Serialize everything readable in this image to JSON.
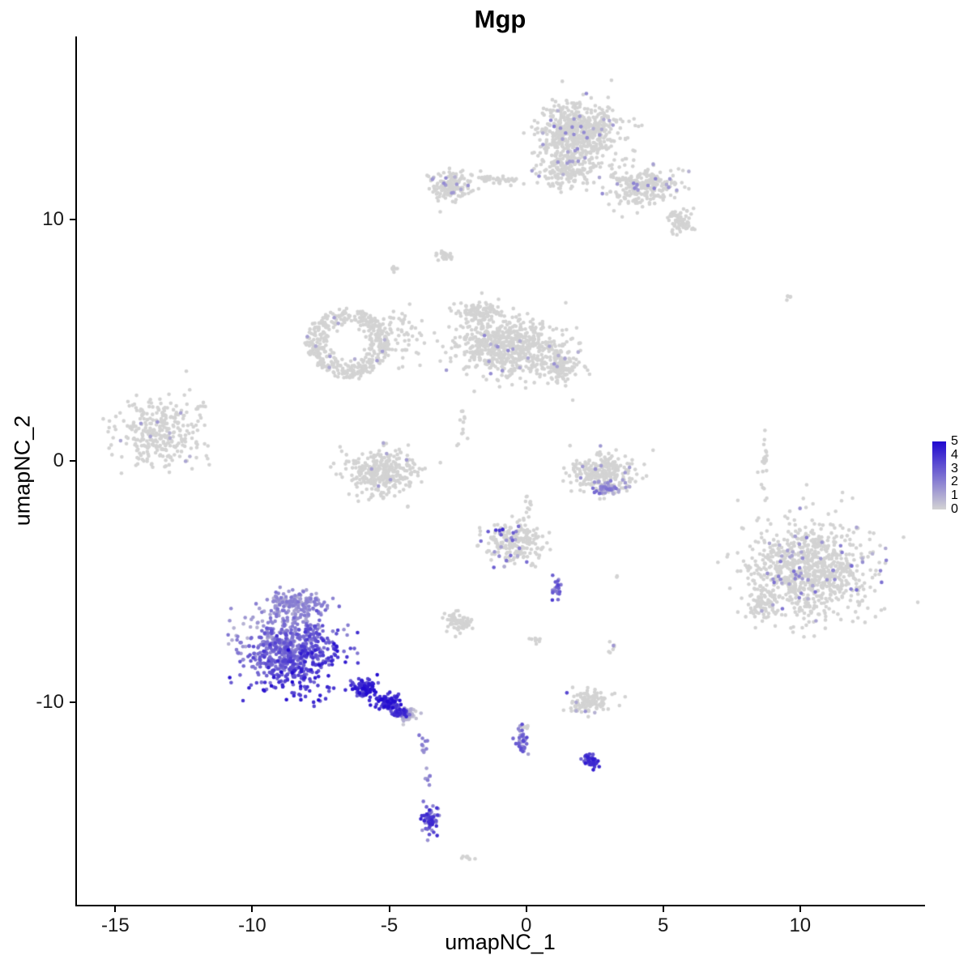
{
  "chart_data": {
    "type": "scatter",
    "title": "Mgp",
    "xlabel": "umapNC_1",
    "ylabel": "umapNC_2",
    "xlim": [
      -16.4,
      14.5
    ],
    "ylim": [
      -18.4,
      17.6
    ],
    "xticks": [
      -15,
      -10,
      -5,
      0,
      5,
      10
    ],
    "yticks": [
      -10,
      0,
      10
    ],
    "grid": false,
    "legend_position": "right",
    "point_radius": 2.3,
    "legend": {
      "min": 0,
      "max": 5,
      "ticks": [
        0,
        1,
        2,
        3,
        4,
        5
      ],
      "low_color": "#D3D3D3",
      "high_color": "#2008D0"
    },
    "clusters": [
      {
        "name": "top-main",
        "cx": 1.9,
        "cy": 13.7,
        "rx": 1.4,
        "ry": 1.15,
        "n": 600,
        "expr": {
          "type": "sprinkle",
          "frac": 0.05,
          "min": 0.8,
          "max": 2.2
        }
      },
      {
        "name": "top-main-lower",
        "cx": 1.5,
        "cy": 12.1,
        "rx": 1.0,
        "ry": 0.8,
        "n": 200,
        "expr": {
          "type": "sprinkle",
          "frac": 0.04,
          "min": 0.8,
          "max": 1.8
        }
      },
      {
        "name": "top-right-arm",
        "cx": 4.3,
        "cy": 11.4,
        "rx": 1.2,
        "ry": 0.85,
        "n": 260,
        "expr": {
          "type": "sprinkle",
          "frac": 0.05,
          "min": 0.8,
          "max": 2.0
        }
      },
      {
        "name": "top-right-tip",
        "cx": 5.6,
        "cy": 9.9,
        "rx": 0.55,
        "ry": 0.5,
        "n": 70
      },
      {
        "name": "top-left-clump",
        "cx": -2.8,
        "cy": 11.4,
        "rx": 0.75,
        "ry": 0.6,
        "n": 150,
        "expr": {
          "type": "sprinkle",
          "frac": 0.05,
          "min": 0.8,
          "max": 1.8
        }
      },
      {
        "name": "top-left-trail",
        "cx": -1.0,
        "cy": 11.65,
        "rx": 1.0,
        "ry": 0.22,
        "n": 40
      },
      {
        "name": "clump-y8",
        "cx": -3.0,
        "cy": 8.55,
        "rx": 0.38,
        "ry": 0.22,
        "n": 25
      },
      {
        "name": "dots-y8-left",
        "cx": -4.85,
        "cy": 7.95,
        "rx": 0.15,
        "ry": 0.12,
        "n": 6
      },
      {
        "name": "mid-large",
        "cx": -0.6,
        "cy": 4.7,
        "rx": 1.9,
        "ry": 1.2,
        "n": 650,
        "expr": {
          "type": "sprinkle",
          "frac": 0.03,
          "min": 0.8,
          "max": 2.0
        }
      },
      {
        "name": "mid-large-top",
        "cx": -1.7,
        "cy": 6.2,
        "rx": 0.8,
        "ry": 0.45,
        "n": 100
      },
      {
        "name": "mid-right-lobe",
        "cx": 1.3,
        "cy": 3.9,
        "rx": 0.7,
        "ry": 0.7,
        "n": 120,
        "expr": {
          "type": "sprinkle",
          "frac": 0.04,
          "min": 0.8,
          "max": 1.8
        }
      },
      {
        "name": "mid-left-ring",
        "cx": -6.5,
        "cy": 4.9,
        "rx": 1.5,
        "ry": 1.4,
        "n": 430,
        "shape": "ring",
        "expr": {
          "type": "sprinkle",
          "frac": 0.02,
          "min": 0.8,
          "max": 1.5
        }
      },
      {
        "name": "mid-left-scatter",
        "cx": -4.6,
        "cy": 5.2,
        "rx": 0.9,
        "ry": 1.3,
        "n": 55
      },
      {
        "name": "far-left",
        "cx": -13.4,
        "cy": 1.2,
        "rx": 1.5,
        "ry": 1.4,
        "n": 300,
        "expr": {
          "type": "sprinkle",
          "frac": 0.02,
          "min": 0.8,
          "max": 1.5
        }
      },
      {
        "name": "far-left-dots",
        "cx": -11.9,
        "cy": 2.2,
        "rx": 0.3,
        "ry": 0.25,
        "n": 8
      },
      {
        "name": "left-band",
        "cx": -5.3,
        "cy": -0.5,
        "rx": 1.35,
        "ry": 0.9,
        "n": 340,
        "expr": {
          "type": "sprinkle",
          "frac": 0.03,
          "min": 0.8,
          "max": 1.8
        }
      },
      {
        "name": "mid-trail",
        "cx": -2.3,
        "cy": 1.6,
        "rx": 0.3,
        "ry": 0.9,
        "n": 12
      },
      {
        "name": "crescent",
        "cx": 2.75,
        "cy": -0.5,
        "rx": 1.2,
        "ry": 0.8,
        "n": 270,
        "expr": {
          "type": "sprinkle",
          "frac": 0.05,
          "min": 0.8,
          "max": 1.8
        }
      },
      {
        "name": "crescent-edge",
        "cx": 3.0,
        "cy": -1.15,
        "rx": 0.65,
        "ry": 0.22,
        "n": 45,
        "expr": {
          "type": "range",
          "min": 0.8,
          "max": 2.6
        }
      },
      {
        "name": "mid-low-trail",
        "cx": 0.1,
        "cy": -1.8,
        "rx": 0.15,
        "ry": 0.8,
        "n": 10
      },
      {
        "name": "small-mid-low",
        "cx": -0.5,
        "cy": -3.4,
        "rx": 1.1,
        "ry": 0.85,
        "n": 210,
        "expr": {
          "type": "sprinkle",
          "frac": 0.07,
          "min": 0.8,
          "max": 3.0
        }
      },
      {
        "name": "mid-low-dark",
        "cx": -1.1,
        "cy": -2.9,
        "rx": 0.25,
        "ry": 0.2,
        "n": 3,
        "expr": {
          "type": "range",
          "min": 3.5,
          "max": 4.6
        }
      },
      {
        "name": "purple-trail",
        "cx": 1.1,
        "cy": -5.2,
        "rx": 0.18,
        "ry": 0.6,
        "n": 20,
        "expr": {
          "type": "range",
          "min": 1.5,
          "max": 3.8
        }
      },
      {
        "name": "small-gray-low",
        "cx": -2.5,
        "cy": -6.7,
        "rx": 0.5,
        "ry": 0.35,
        "n": 70
      },
      {
        "name": "dots-mid-low",
        "cx": 0.35,
        "cy": -7.45,
        "rx": 0.22,
        "ry": 0.18,
        "n": 8
      },
      {
        "name": "dots-right-low",
        "cx": 3.15,
        "cy": -7.75,
        "rx": 0.18,
        "ry": 0.25,
        "n": 7,
        "expr": {
          "type": "sprinkle",
          "frac": 0.3,
          "min": 0.8,
          "max": 2.0
        }
      },
      {
        "name": "pair-right-mid",
        "cx": 3.2,
        "cy": -4.85,
        "rx": 0.2,
        "ry": 0.12,
        "n": 2
      },
      {
        "name": "big-right",
        "cx": 10.4,
        "cy": -4.5,
        "rx": 2.2,
        "ry": 2.0,
        "n": 900,
        "expr": {
          "type": "sprinkle",
          "frac": 0.06,
          "min": 0.8,
          "max": 2.6
        }
      },
      {
        "name": "big-right-edge",
        "cx": 8.6,
        "cy": -5.9,
        "rx": 0.6,
        "ry": 0.7,
        "n": 80,
        "expr": {
          "type": "sprinkle",
          "frac": 0.05,
          "min": 0.8,
          "max": 2.0
        }
      },
      {
        "name": "right-vertical-trail",
        "cx": 8.7,
        "cy": 0.0,
        "rx": 0.15,
        "ry": 1.7,
        "n": 26
      },
      {
        "name": "right-high-dots",
        "cx": 9.6,
        "cy": 6.8,
        "rx": 0.25,
        "ry": 0.18,
        "n": 5
      },
      {
        "name": "mgp-core",
        "cx": -8.6,
        "cy": -7.9,
        "rx": 1.8,
        "ry": 1.6,
        "n": 700,
        "expr": {
          "type": "gradient",
          "base": 2.7,
          "kx": 0.6,
          "ky": -1.0,
          "noise": 0.7,
          "min": 0.8,
          "max": 5
        }
      },
      {
        "name": "mgp-top-fringe",
        "cx": -8.4,
        "cy": -5.9,
        "rx": 1.1,
        "ry": 0.55,
        "n": 150,
        "expr": {
          "type": "range",
          "min": 0.8,
          "max": 2.4
        }
      },
      {
        "name": "mgp-tail-1",
        "cx": -5.9,
        "cy": -9.4,
        "rx": 0.5,
        "ry": 0.4,
        "n": 90,
        "expr": {
          "type": "range",
          "min": 2.8,
          "max": 5.0
        }
      },
      {
        "name": "mgp-tail-2",
        "cx": -5.1,
        "cy": -10.0,
        "rx": 0.45,
        "ry": 0.35,
        "n": 90,
        "expr": {
          "type": "range",
          "min": 3.0,
          "max": 5.0
        }
      },
      {
        "name": "mgp-tail-tip",
        "cx": -4.6,
        "cy": -10.45,
        "rx": 0.3,
        "ry": 0.25,
        "n": 50,
        "expr": {
          "type": "range",
          "min": 2.0,
          "max": 4.5
        }
      },
      {
        "name": "tail-tip-gray",
        "cx": -4.35,
        "cy": -10.55,
        "rx": 0.3,
        "ry": 0.25,
        "n": 55,
        "expr": {
          "type": "range",
          "min": 0.0,
          "max": 1.2
        }
      },
      {
        "name": "below-trail",
        "cx": -3.75,
        "cy": -11.7,
        "rx": 0.15,
        "ry": 0.5,
        "n": 12,
        "expr": {
          "type": "range",
          "min": 0.8,
          "max": 2.5
        }
      },
      {
        "name": "below-singles",
        "cx": -3.6,
        "cy": -13.1,
        "rx": 0.12,
        "ry": 0.5,
        "n": 7,
        "expr": {
          "type": "range",
          "min": 0.8,
          "max": 2.2
        }
      },
      {
        "name": "bottom-clump",
        "cx": -3.55,
        "cy": -14.9,
        "rx": 0.28,
        "ry": 0.6,
        "n": 65,
        "expr": {
          "type": "range",
          "min": 1.5,
          "max": 4.5
        }
      },
      {
        "name": "mid-bottom-clump",
        "cx": -0.15,
        "cy": -11.7,
        "rx": 0.22,
        "ry": 0.55,
        "n": 40,
        "expr": {
          "type": "range",
          "min": 1.2,
          "max": 3.5
        }
      },
      {
        "name": "mid-bottom-top",
        "cx": -0.05,
        "cy": -11.05,
        "rx": 0.16,
        "ry": 0.13,
        "n": 8
      },
      {
        "name": "purple-clump-right",
        "cx": 2.35,
        "cy": -12.45,
        "rx": 0.3,
        "ry": 0.25,
        "n": 55,
        "expr": {
          "type": "range",
          "min": 2.2,
          "max": 4.6
        }
      },
      {
        "name": "gray-low-right",
        "cx": 2.3,
        "cy": -10.0,
        "rx": 0.8,
        "ry": 0.45,
        "n": 115,
        "expr": {
          "type": "sprinkle",
          "frac": 0.02,
          "min": 0.8,
          "max": 1.6
        }
      },
      {
        "name": "single-purple-dot",
        "cx": 1.5,
        "cy": -9.6,
        "rx": 0.04,
        "ry": 0.04,
        "n": 1,
        "expr": {
          "type": "range",
          "min": 3.0,
          "max": 3.5
        }
      },
      {
        "name": "bottom-tiny",
        "cx": -2.15,
        "cy": -16.45,
        "rx": 0.22,
        "ry": 0.1,
        "n": 9
      }
    ]
  }
}
